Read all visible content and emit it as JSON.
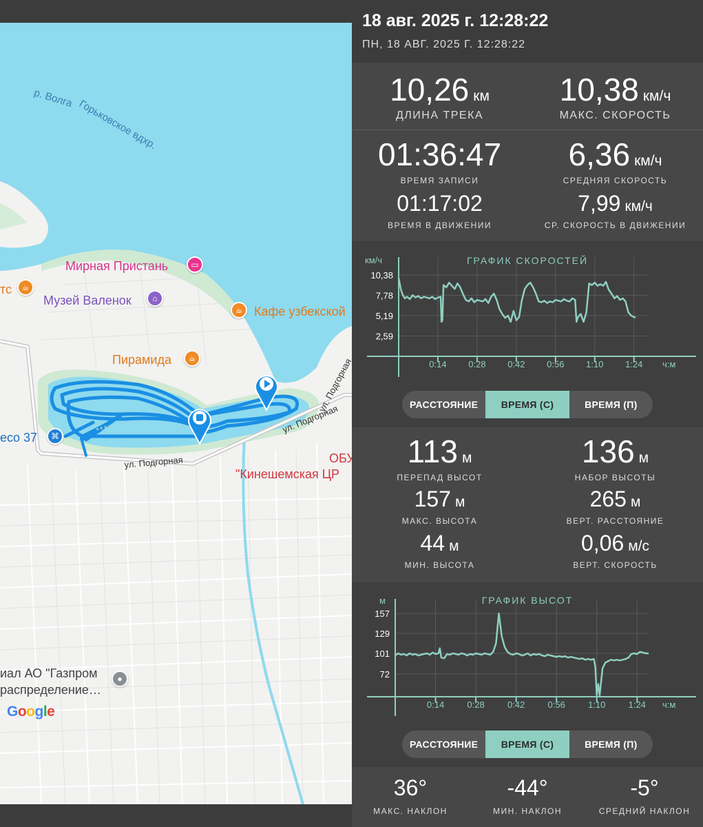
{
  "header": {
    "title": "18 авг. 2025 г. 12:28:22",
    "subtitle": "ПН, 18 АВГ. 2025 Г. 12:28:22"
  },
  "map": {
    "water_label_1": "р. Волга",
    "water_label_2": "Горьковское вдхр.",
    "poi": {
      "pristan": "Мирная Пристань",
      "museum": "Музей Валенок",
      "cafe_left": "тс",
      "cafe_uz": "Кафе узбекской",
      "piramida": "Пирамида",
      "eco": "eco 37",
      "obu": "ОБУ",
      "crb": "\"Кинешемская ЦР",
      "gazprom_1": "иал АО \"Газпром",
      "gazprom_2": "распределение…"
    },
    "streets": {
      "podgornaya_1": "ул. Подгорная",
      "podgornaya_2": "ул. Подгорная",
      "podgornaya_3": "ул. Подгорная"
    },
    "google_letters": [
      "G",
      "o",
      "o",
      "g",
      "l",
      "e"
    ]
  },
  "stats_top": {
    "track_length": {
      "value": "10,26",
      "unit": "км",
      "label": "ДЛИНА ТРЕКА"
    },
    "max_speed": {
      "value": "10,38",
      "unit": "км/ч",
      "label": "МАКС. СКОРОСТЬ"
    },
    "rec_time": {
      "value": "01:36:47",
      "label": "ВРЕМЯ ЗАПИСИ"
    },
    "avg_speed": {
      "value": "6,36",
      "unit": "км/ч",
      "label": "СРЕДНЯЯ СКОРОСТЬ"
    },
    "move_time": {
      "value": "01:17:02",
      "label": "ВРЕМЯ В ДВИЖЕНИИ"
    },
    "avg_move_speed": {
      "value": "7,99",
      "unit": "км/ч",
      "label": "СР. СКОРОСТЬ В ДВИЖЕНИИ"
    }
  },
  "speed_chart": {
    "title": "ГРАФИК СКОРОСТЕЙ",
    "unit": "км/ч",
    "x_unit": "ч:м",
    "y_ticks": [
      "10,38",
      "7,78",
      "5,19",
      "2,59"
    ],
    "x_ticks": [
      "0:14",
      "0:28",
      "0:42",
      "0:56",
      "1:10",
      "1:24"
    ]
  },
  "chart_data": [
    {
      "type": "line",
      "title": "ГРАФИК СКОРОСТЕЙ",
      "ylabel": "км/ч",
      "xlabel": "ч:м",
      "ylim": [
        0,
        10.38
      ],
      "xlim": [
        0,
        88
      ],
      "grid": true,
      "y_tick_values": [
        10.38,
        7.78,
        5.19,
        2.59
      ],
      "x_tick_values": [
        14,
        28,
        42,
        56,
        70,
        84
      ],
      "x": [
        0,
        0.8,
        1.5,
        2.2,
        3,
        4,
        5,
        6,
        7,
        8,
        9,
        10,
        11,
        12,
        13,
        14,
        15,
        15.3,
        15.6,
        16,
        17,
        18,
        19,
        20,
        21,
        22,
        23,
        24,
        25,
        26,
        27,
        28,
        29,
        30,
        31,
        32,
        33,
        34,
        35,
        36,
        37,
        38,
        39,
        40,
        41,
        42,
        43,
        44,
        45,
        46,
        47,
        48,
        49,
        50,
        51,
        52,
        53,
        54,
        55,
        56,
        57,
        58,
        59,
        60,
        61,
        62,
        63,
        63.5,
        64,
        65,
        66,
        67,
        68,
        69,
        70,
        71,
        72,
        73,
        74,
        75,
        76,
        77,
        78,
        79,
        80,
        81,
        82,
        83,
        84,
        84.6
      ],
      "y": [
        10.0,
        8.5,
        7.8,
        7.4,
        7.6,
        7.3,
        7.8,
        7.5,
        7.7,
        7.4,
        7.6,
        7.5,
        7.4,
        7.6,
        7.3,
        7.5,
        7.6,
        4.4,
        4.6,
        9.1,
        8.8,
        9.4,
        9.0,
        8.6,
        9.3,
        8.8,
        7.9,
        7.2,
        7.0,
        7.4,
        6.9,
        7.2,
        7.1,
        7.0,
        7.3,
        6.8,
        7.6,
        8.0,
        7.2,
        6.0,
        5.4,
        4.9,
        5.2,
        4.4,
        5.8,
        4.6,
        5.0,
        7.2,
        8.6,
        9.1,
        9.4,
        8.8,
        8.0,
        7.0,
        6.9,
        7.1,
        6.8,
        7.0,
        6.9,
        7.2,
        7.1,
        7.0,
        7.3,
        7.1,
        7.0,
        7.4,
        7.2,
        4.4,
        5.0,
        5.4,
        4.4,
        5.6,
        9.3,
        9.1,
        9.4,
        9.0,
        9.2,
        9.0,
        9.5,
        8.5,
        8.0,
        7.4,
        7.7,
        7.2,
        7.4,
        7.0,
        5.6,
        5.2,
        5.0,
        5.0
      ]
    },
    {
      "type": "line",
      "title": "ГРАФИК ВЫСОТ",
      "ylabel": "м",
      "xlabel": "ч:м",
      "ylim": [
        40,
        160
      ],
      "xlim": [
        0,
        88
      ],
      "grid": true,
      "y_tick_values": [
        157,
        129,
        101,
        72
      ],
      "x_tick_values": [
        14,
        28,
        42,
        56,
        70,
        84
      ],
      "x": [
        0,
        1,
        2,
        3,
        4,
        5,
        6,
        7,
        8,
        9,
        10,
        11,
        12,
        13,
        14,
        15,
        15.5,
        16,
        17,
        18,
        19,
        20,
        21,
        22,
        23,
        24,
        25,
        26,
        27,
        28,
        29,
        30,
        31,
        32,
        33,
        34,
        35,
        36,
        37,
        38,
        39,
        40,
        41,
        42,
        43,
        44,
        45,
        46,
        47,
        48,
        49,
        50,
        51,
        52,
        53,
        54,
        55,
        56,
        57,
        58,
        59,
        60,
        61,
        62,
        63,
        64,
        65,
        66,
        67,
        68,
        69,
        69.5,
        70,
        70.5,
        71,
        72,
        73,
        74,
        75,
        76,
        77,
        78,
        79,
        80,
        81,
        82,
        83,
        84,
        85,
        86,
        87,
        88
      ],
      "y": [
        98,
        101,
        99,
        100,
        98,
        101,
        99,
        100,
        98,
        99,
        100,
        101,
        99,
        102,
        100,
        101,
        108,
        95,
        94,
        100,
        99,
        101,
        100,
        99,
        101,
        100,
        98,
        100,
        99,
        101,
        100,
        99,
        101,
        100,
        99,
        103,
        115,
        157,
        125,
        110,
        103,
        100,
        99,
        101,
        100,
        98,
        99,
        101,
        98,
        100,
        99,
        100,
        98,
        97,
        99,
        98,
        97,
        96,
        97,
        96,
        97,
        95,
        96,
        95,
        94,
        93,
        94,
        92,
        93,
        92,
        93,
        82,
        42,
        58,
        42,
        80,
        88,
        90,
        92,
        91,
        92,
        91,
        92,
        93,
        95,
        100,
        101,
        100,
        103,
        102,
        101,
        101
      ]
    }
  ],
  "toggle_speed": {
    "opt1": "РАССТОЯНИЕ",
    "opt2": "ВРЕМЯ (С)",
    "opt3": "ВРЕМЯ (П)"
  },
  "stats_alt": {
    "elev_diff": {
      "value": "113",
      "unit": "м",
      "label": "ПЕРЕПАД ВЫСОТ"
    },
    "elev_gain": {
      "value": "136",
      "unit": "м",
      "label": "НАБОР ВЫСОТЫ"
    },
    "max_alt": {
      "value": "157",
      "unit": "м",
      "label": "МАКС. ВЫСОТА"
    },
    "vert_dist": {
      "value": "265",
      "unit": "м",
      "label": "ВЕРТ. РАССТОЯНИЕ"
    },
    "min_alt": {
      "value": "44",
      "unit": "м",
      "label": "МИН. ВЫСОТА"
    },
    "vert_speed": {
      "value": "0,06",
      "unit": "м/с",
      "label": "ВЕРТ. СКОРОСТЬ"
    }
  },
  "alt_chart": {
    "title": "ГРАФИК ВЫСОТ",
    "unit": "м",
    "x_unit": "ч:м",
    "y_ticks": [
      "157",
      "129",
      "101",
      "72"
    ],
    "x_ticks": [
      "0:14",
      "0:28",
      "0:42",
      "0:56",
      "1:10",
      "1:24"
    ]
  },
  "toggle_alt": {
    "opt1": "РАССТОЯНИЕ",
    "opt2": "ВРЕМЯ (С)",
    "opt3": "ВРЕМЯ (П)"
  },
  "slope": {
    "max": {
      "value": "36°",
      "label": "МАКС. НАКЛОН"
    },
    "min": {
      "value": "-44°",
      "label": "МИН. НАКЛОН"
    },
    "avg": {
      "value": "-5°",
      "label": "СРЕДНИЙ НАКЛОН"
    }
  },
  "colors": {
    "accent": "#8ecfc2",
    "track": "#1a8fe3",
    "water": "#8edaee",
    "panel": "#474747"
  }
}
